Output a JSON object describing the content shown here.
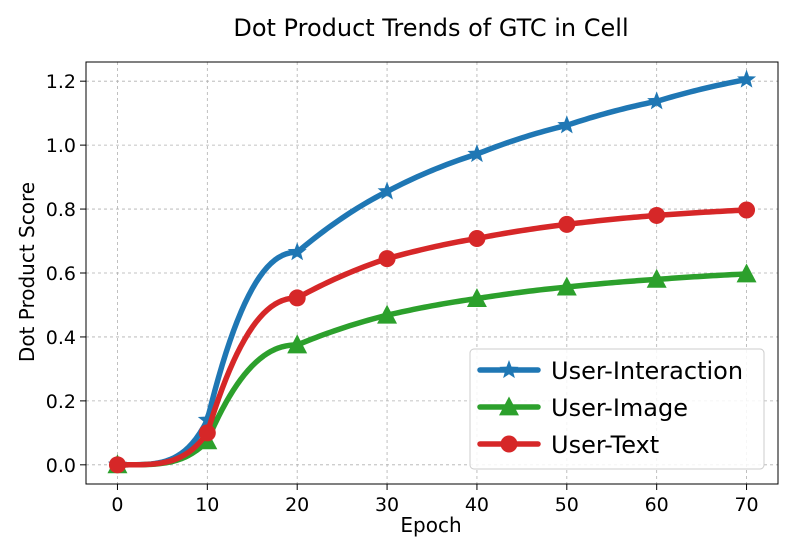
{
  "chart_data": {
    "type": "line",
    "title": "Dot Product Trends of GTC in Cell",
    "xlabel": "Epoch",
    "ylabel": "Dot Product Score",
    "xlim": [
      -3.5,
      73.5
    ],
    "ylim": [
      -0.06,
      1.26
    ],
    "xticks": [
      0,
      10,
      20,
      30,
      40,
      50,
      60,
      70
    ],
    "yticks": [
      0.0,
      0.2,
      0.4,
      0.6,
      0.8,
      1.0,
      1.2
    ],
    "grid": true,
    "legend_position": "lower-right",
    "x": [
      0,
      10,
      20,
      30,
      40,
      50,
      60,
      70
    ],
    "series": [
      {
        "name": "User-Interaction",
        "color": "#1f77b4",
        "marker": "star",
        "values": [
          0.0,
          0.14,
          0.665,
          0.855,
          0.972,
          1.062,
          1.137,
          1.205
        ]
      },
      {
        "name": "User-Image",
        "color": "#2ca02c",
        "marker": "triangle",
        "values": [
          0.0,
          0.075,
          0.375,
          0.468,
          0.52,
          0.556,
          0.58,
          0.597
        ]
      },
      {
        "name": "User-Text",
        "color": "#d62728",
        "marker": "circle",
        "values": [
          0.0,
          0.1,
          0.522,
          0.645,
          0.708,
          0.752,
          0.78,
          0.797
        ]
      }
    ]
  }
}
